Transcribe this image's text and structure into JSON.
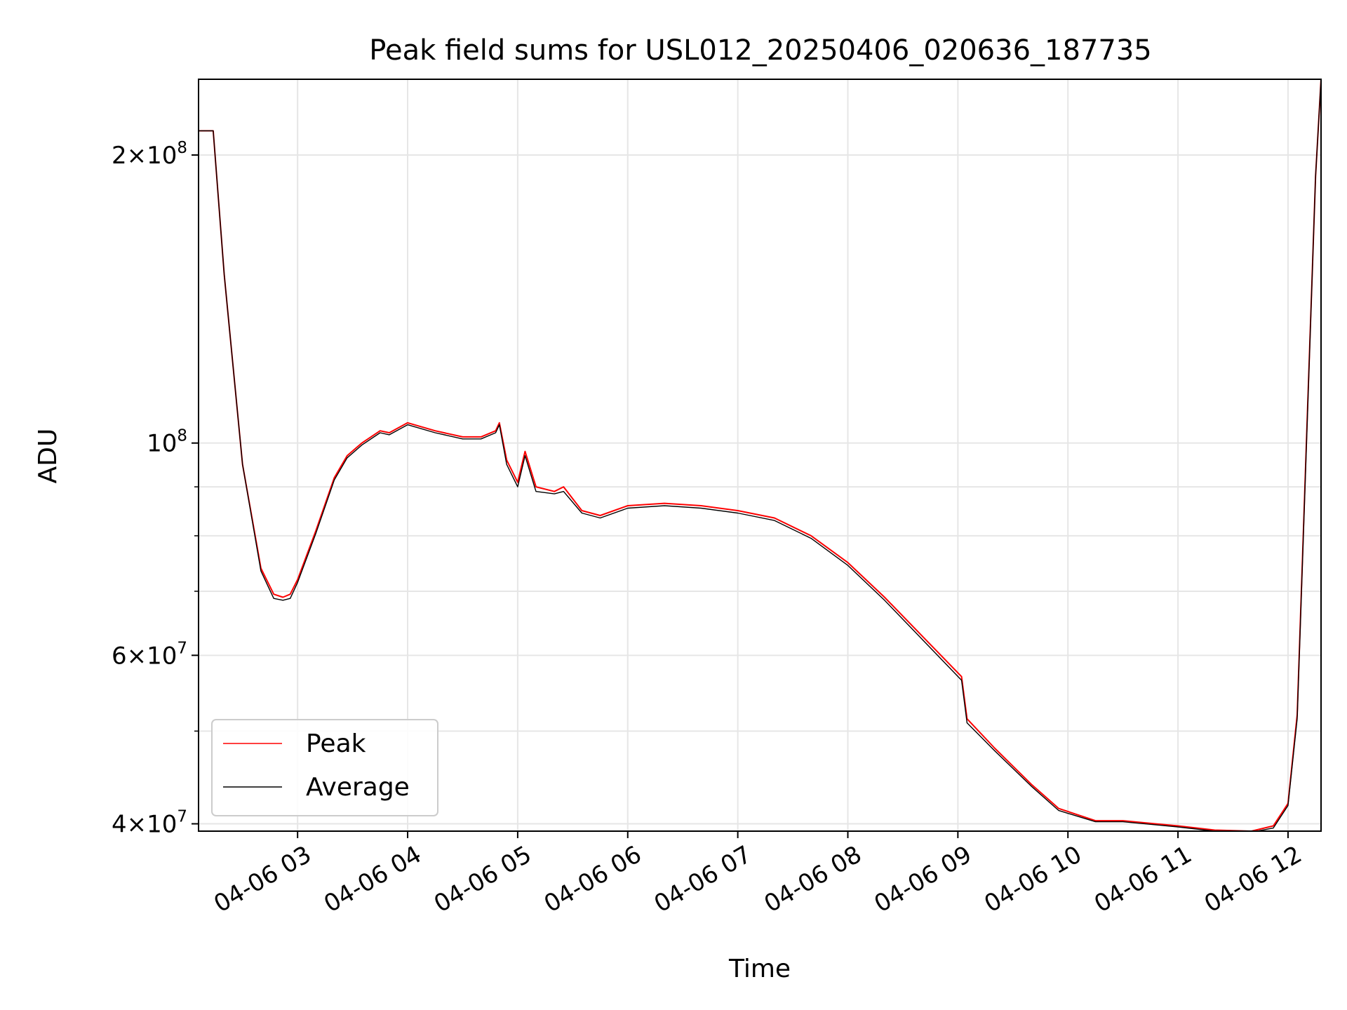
{
  "chart_data": {
    "type": "line",
    "title": "Peak field sums for USL012_20250406_020636_187735",
    "xlabel": "Time",
    "ylabel": "ADU",
    "y_scale": "log",
    "grid": true,
    "legend_position": "lower-left",
    "xlim": [
      "2025-04-06 02:06",
      "2025-04-06 12:18"
    ],
    "ylim": [
      39300000,
      240000000
    ],
    "x_ticks": [
      "04-06 03",
      "04-06 04",
      "04-06 05",
      "04-06 06",
      "04-06 07",
      "04-06 08",
      "04-06 09",
      "04-06 10",
      "04-06 11",
      "04-06 12"
    ],
    "y_ticks": [
      {
        "value": 40000000,
        "base": "4×10",
        "exp": "7"
      },
      {
        "value": 60000000,
        "base": "6×10",
        "exp": "7"
      },
      {
        "value": 100000000,
        "base": "10",
        "exp": "8"
      },
      {
        "value": 200000000,
        "base": "2×10",
        "exp": "8"
      }
    ],
    "series": [
      {
        "name": "Peak",
        "color": "#ff0000",
        "x": [
          "2025-04-06 02:06",
          "2025-04-06 02:12",
          "2025-04-06 02:14",
          "2025-04-06 02:20",
          "2025-04-06 02:30",
          "2025-04-06 02:40",
          "2025-04-06 02:47",
          "2025-04-06 02:52",
          "2025-04-06 02:56",
          "2025-04-06 03:00",
          "2025-04-06 03:10",
          "2025-04-06 03:20",
          "2025-04-06 03:27",
          "2025-04-06 03:35",
          "2025-04-06 03:45",
          "2025-04-06 03:50",
          "2025-04-06 04:00",
          "2025-04-06 04:15",
          "2025-04-06 04:30",
          "2025-04-06 04:40",
          "2025-04-06 04:48",
          "2025-04-06 04:50",
          "2025-04-06 04:54",
          "2025-04-06 05:00",
          "2025-04-06 05:04",
          "2025-04-06 05:10",
          "2025-04-06 05:20",
          "2025-04-06 05:25",
          "2025-04-06 05:35",
          "2025-04-06 05:45",
          "2025-04-06 06:00",
          "2025-04-06 06:20",
          "2025-04-06 06:40",
          "2025-04-06 07:00",
          "2025-04-06 07:20",
          "2025-04-06 07:40",
          "2025-04-06 08:00",
          "2025-04-06 08:20",
          "2025-04-06 08:40",
          "2025-04-06 09:02",
          "2025-04-06 09:05",
          "2025-04-06 09:20",
          "2025-04-06 09:40",
          "2025-04-06 09:55",
          "2025-04-06 10:15",
          "2025-04-06 10:30",
          "2025-04-06 11:00",
          "2025-04-06 11:20",
          "2025-04-06 11:40",
          "2025-04-06 11:52",
          "2025-04-06 12:00",
          "2025-04-06 12:05",
          "2025-04-06 12:10",
          "2025-04-06 12:15",
          "2025-04-06 12:18"
        ],
        "y": [
          212000000,
          212000000,
          212000000,
          150000000,
          95000000,
          74000000,
          69500000,
          69000000,
          69500000,
          72000000,
          81000000,
          92000000,
          97000000,
          100000000,
          103000000,
          102500000,
          105000000,
          103000000,
          101500000,
          101500000,
          103000000,
          105000000,
          96000000,
          91000000,
          98000000,
          90000000,
          89000000,
          90000000,
          85000000,
          84000000,
          86000000,
          86500000,
          86000000,
          85000000,
          83500000,
          80000000,
          75000000,
          69000000,
          63000000,
          57000000,
          51500000,
          48000000,
          44000000,
          41500000,
          40300000,
          40300000,
          39800000,
          39400000,
          39300000,
          39800000,
          42000000,
          52000000,
          100000000,
          190000000,
          240000000
        ]
      },
      {
        "name": "Average",
        "color": "#000000",
        "x": [
          "2025-04-06 02:06",
          "2025-04-06 02:12",
          "2025-04-06 02:14",
          "2025-04-06 02:20",
          "2025-04-06 02:30",
          "2025-04-06 02:40",
          "2025-04-06 02:47",
          "2025-04-06 02:52",
          "2025-04-06 02:56",
          "2025-04-06 03:00",
          "2025-04-06 03:10",
          "2025-04-06 03:20",
          "2025-04-06 03:27",
          "2025-04-06 03:35",
          "2025-04-06 03:45",
          "2025-04-06 03:50",
          "2025-04-06 04:00",
          "2025-04-06 04:15",
          "2025-04-06 04:30",
          "2025-04-06 04:40",
          "2025-04-06 04:48",
          "2025-04-06 04:50",
          "2025-04-06 04:54",
          "2025-04-06 05:00",
          "2025-04-06 05:04",
          "2025-04-06 05:10",
          "2025-04-06 05:20",
          "2025-04-06 05:25",
          "2025-04-06 05:35",
          "2025-04-06 05:45",
          "2025-04-06 06:00",
          "2025-04-06 06:20",
          "2025-04-06 06:40",
          "2025-04-06 07:00",
          "2025-04-06 07:20",
          "2025-04-06 07:40",
          "2025-04-06 08:00",
          "2025-04-06 08:20",
          "2025-04-06 08:40",
          "2025-04-06 09:02",
          "2025-04-06 09:05",
          "2025-04-06 09:20",
          "2025-04-06 09:40",
          "2025-04-06 09:55",
          "2025-04-06 10:15",
          "2025-04-06 10:30",
          "2025-04-06 11:00",
          "2025-04-06 11:20",
          "2025-04-06 11:40",
          "2025-04-06 11:52",
          "2025-04-06 12:00",
          "2025-04-06 12:05",
          "2025-04-06 12:10",
          "2025-04-06 12:15",
          "2025-04-06 12:18"
        ],
        "y": [
          212000000,
          212000000,
          212000000,
          150000000,
          95000000,
          73500000,
          68800000,
          68500000,
          68800000,
          71500000,
          80500000,
          91500000,
          96500000,
          99500000,
          102500000,
          102000000,
          104500000,
          102500000,
          101000000,
          101000000,
          102500000,
          104500000,
          95000000,
          90000000,
          97000000,
          89000000,
          88500000,
          89000000,
          84500000,
          83500000,
          85500000,
          86000000,
          85500000,
          84500000,
          83000000,
          79500000,
          74500000,
          68500000,
          62500000,
          56500000,
          51000000,
          47700000,
          43800000,
          41300000,
          40200000,
          40200000,
          39700000,
          39300000,
          39200000,
          39600000,
          41800000,
          51500000,
          99000000,
          190000000,
          240000000
        ]
      }
    ]
  }
}
